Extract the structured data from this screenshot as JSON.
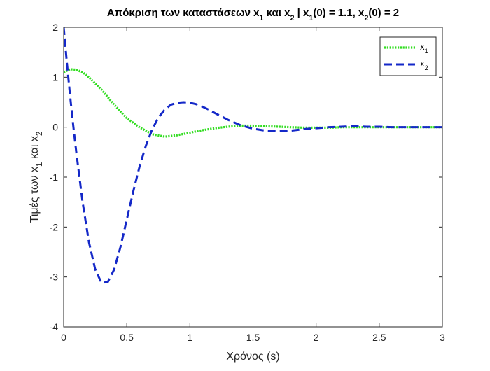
{
  "chart_data": {
    "type": "line",
    "title": {
      "parts": [
        {
          "t": "Απόκριση των καταστάσεων x"
        },
        {
          "t": "1",
          "sub": true
        },
        {
          "t": " και x"
        },
        {
          "t": "2",
          "sub": true
        },
        {
          "t": " | x"
        },
        {
          "t": "1",
          "sub": true
        },
        {
          "t": "(0) = 1.1, x"
        },
        {
          "t": "2",
          "sub": true
        },
        {
          "t": "(0) = 2"
        }
      ]
    },
    "xlabel": "Χρόνος (s)",
    "ylabel": {
      "parts": [
        {
          "t": "Τιμές των x"
        },
        {
          "t": "1",
          "sub": true
        },
        {
          "t": " και x"
        },
        {
          "t": "2",
          "sub": true
        }
      ]
    },
    "xlim": [
      0,
      3
    ],
    "ylim": [
      -4,
      2
    ],
    "xticks": [
      0,
      0.5,
      1,
      1.5,
      2,
      2.5,
      3
    ],
    "xtick_labels": [
      "0",
      "0.5",
      "1",
      "1.5",
      "2",
      "2.5",
      "3"
    ],
    "yticks": [
      -4,
      -3,
      -2,
      -1,
      0,
      1,
      2
    ],
    "ytick_labels": [
      "-4",
      "-3",
      "-2",
      "-1",
      "0",
      "1",
      "2"
    ],
    "grid": false,
    "legend_position": "top-right",
    "series": [
      {
        "name": "x",
        "name_sub": "1",
        "color": "#33dd22",
        "style": "dotted",
        "x": [
          0,
          0.05,
          0.1,
          0.15,
          0.2,
          0.3,
          0.4,
          0.5,
          0.6,
          0.7,
          0.8,
          0.9,
          1.0,
          1.1,
          1.2,
          1.3,
          1.4,
          1.5,
          1.6,
          1.7,
          1.8,
          1.9,
          2.0,
          2.1,
          2.2,
          2.3,
          2.4,
          2.5,
          2.6,
          2.8,
          3.0
        ],
        "y": [
          1.1,
          1.16,
          1.15,
          1.1,
          1.0,
          0.75,
          0.45,
          0.18,
          0.0,
          -0.14,
          -0.19,
          -0.16,
          -0.11,
          -0.06,
          -0.02,
          0.01,
          0.03,
          0.03,
          0.02,
          0.01,
          0.0,
          -0.01,
          -0.01,
          -0.01,
          0.0,
          0.0,
          0.0,
          0.0,
          0.0,
          0.0,
          0.0
        ]
      },
      {
        "name": "x",
        "name_sub": "2",
        "color": "#1428c8",
        "style": "dashed",
        "x": [
          0,
          0.025,
          0.05,
          0.075,
          0.1,
          0.15,
          0.2,
          0.25,
          0.3,
          0.35,
          0.4,
          0.45,
          0.5,
          0.55,
          0.6,
          0.65,
          0.7,
          0.75,
          0.8,
          0.85,
          0.9,
          0.95,
          1.0,
          1.05,
          1.1,
          1.15,
          1.2,
          1.3,
          1.4,
          1.5,
          1.6,
          1.7,
          1.8,
          1.9,
          2.0,
          2.1,
          2.2,
          2.3,
          2.4,
          2.5,
          2.6,
          2.7,
          2.8,
          3.0
        ],
        "y": [
          2.0,
          1.3,
          0.65,
          0.05,
          -0.5,
          -1.5,
          -2.3,
          -2.85,
          -3.12,
          -3.1,
          -2.85,
          -2.4,
          -1.85,
          -1.3,
          -0.8,
          -0.38,
          -0.05,
          0.19,
          0.35,
          0.45,
          0.49,
          0.5,
          0.49,
          0.46,
          0.41,
          0.35,
          0.28,
          0.15,
          0.04,
          -0.03,
          -0.07,
          -0.08,
          -0.07,
          -0.04,
          -0.02,
          0.0,
          0.01,
          0.02,
          0.01,
          0.01,
          0.0,
          0.0,
          0.0,
          0.0
        ]
      }
    ]
  }
}
